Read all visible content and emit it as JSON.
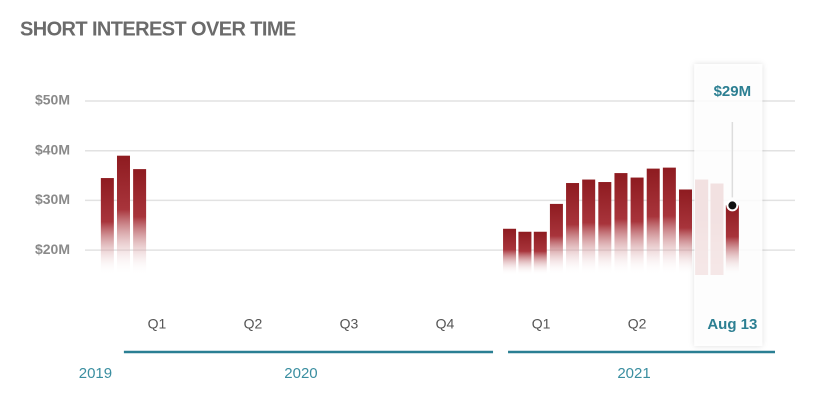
{
  "chart_data": {
    "type": "bar",
    "title": "SHORT INTEREST OVER TIME",
    "x": [
      2019.996,
      2020.038,
      2020.08,
      2021.043,
      2021.083,
      2021.123,
      2021.165,
      2021.207,
      2021.249,
      2021.291,
      2021.333,
      2021.375,
      2021.417,
      2021.459,
      2021.501,
      2021.543,
      2021.583,
      2021.623
    ],
    "values": [
      34.5,
      39,
      36.3,
      24.3,
      23.7,
      23.7,
      29.3,
      33.5,
      34.2,
      33.7,
      35.5,
      34.6,
      36.4,
      36.6,
      32.2,
      34.2,
      33.4,
      29
    ],
    "value_labels": [
      null,
      null,
      null,
      null,
      null,
      null,
      null,
      null,
      null,
      null,
      null,
      null,
      null,
      null,
      null,
      null,
      null,
      "$29M"
    ],
    "color": "#8e1b20",
    "ylim": [
      15,
      50
    ],
    "yticks": [
      {
        "value": 20,
        "label": "$20M"
      },
      {
        "value": 30,
        "label": "$30M"
      },
      {
        "value": 40,
        "label": "$40M"
      },
      {
        "value": 50,
        "label": "$50M"
      }
    ],
    "xlim": [
      2019.93,
      2021.734
    ],
    "xticks": [
      {
        "value": 2020.125,
        "label": "Q1"
      },
      {
        "value": 2020.375,
        "label": "Q2"
      },
      {
        "value": 2020.625,
        "label": "Q3"
      },
      {
        "value": 2020.875,
        "label": "Q4"
      },
      {
        "value": 2021.125,
        "label": "Q1"
      },
      {
        "value": 2021.375,
        "label": "Q2"
      },
      {
        "value": 2021.623,
        "label": "Aug 13"
      }
    ],
    "years": [
      2019,
      2020,
      2021
    ],
    "grid": true
  }
}
